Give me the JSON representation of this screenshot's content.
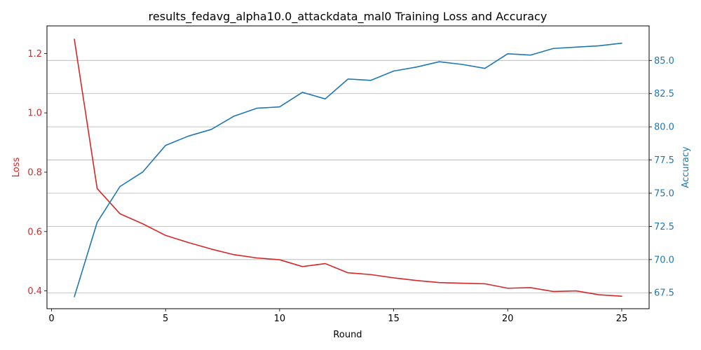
{
  "chart_data": {
    "type": "line",
    "title": "results_fedavg_alpha10.0_attackdata_mal0 Training Loss and Accuracy",
    "xlabel": "Round",
    "ylabel_left": "Loss",
    "ylabel_right": "Accuracy",
    "x": [
      1,
      2,
      3,
      4,
      5,
      6,
      7,
      8,
      9,
      10,
      11,
      12,
      13,
      14,
      15,
      16,
      17,
      18,
      19,
      20,
      21,
      22,
      23,
      24,
      25
    ],
    "xlim": [
      -0.2,
      26.2
    ],
    "ylim_left": [
      0.34,
      1.293
    ],
    "ylim_right": [
      66.3,
      87.6
    ],
    "xticks": [
      0,
      5,
      10,
      15,
      20,
      25
    ],
    "yticks_left": [
      0.4,
      0.6,
      0.8,
      1.0,
      1.2
    ],
    "yticks_left_labels": [
      "0.4",
      "0.6",
      "0.8",
      "1.0",
      "1.2"
    ],
    "yticks_right": [
      67.5,
      70.0,
      72.5,
      75.0,
      77.5,
      80.0,
      82.5,
      85.0
    ],
    "yticks_right_labels": [
      "67.5",
      "70.0",
      "72.5",
      "75.0",
      "77.5",
      "80.0",
      "82.5",
      "85.0"
    ],
    "grid": "horizontal lines at right-axis ticks",
    "series": [
      {
        "axis": "left",
        "color": "#d62728",
        "values": [
          1.248,
          0.745,
          0.66,
          0.626,
          0.587,
          0.563,
          0.541,
          0.522,
          0.511,
          0.505,
          0.482,
          0.492,
          0.461,
          0.455,
          0.444,
          0.435,
          0.428,
          0.426,
          0.424,
          0.409,
          0.411,
          0.398,
          0.4,
          0.387,
          0.382
        ]
      },
      {
        "axis": "right",
        "color": "#1f77b4",
        "values": [
          67.2,
          72.8,
          75.5,
          76.6,
          78.6,
          79.3,
          79.8,
          80.8,
          81.4,
          81.5,
          82.6,
          82.1,
          83.6,
          83.5,
          84.2,
          84.5,
          84.9,
          84.7,
          84.4,
          85.5,
          85.4,
          85.9,
          86.0,
          86.1,
          86.3
        ]
      }
    ]
  }
}
